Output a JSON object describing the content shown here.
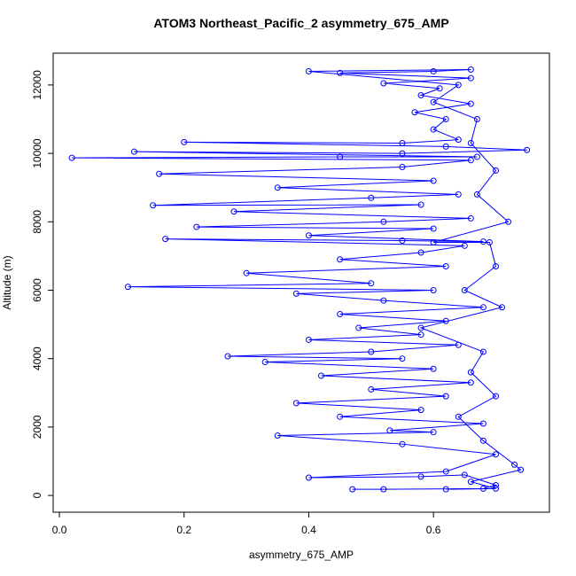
{
  "chart_data": {
    "type": "line",
    "title": "ATOM3 Northeast_Pacific_2 asymmetry_675_AMP",
    "x_label": "asymmetry_675_AMP",
    "y_label": "Altitude (m)",
    "xlim": [
      -0.01,
      0.786
    ],
    "ylim": [
      -490,
      12930
    ],
    "xticks": [
      {
        "value": 0,
        "label": "0.0"
      },
      0.2,
      0.4,
      0.6
    ],
    "yticks": [
      0,
      2000,
      4000,
      6000,
      8000,
      10000,
      12000
    ],
    "series": [
      {
        "name": "asymmetry_675_AMP",
        "color": "#0000ff",
        "x": [
          0.47,
          0.52,
          0.68,
          0.7,
          0.65,
          0.58,
          0.4,
          0.62,
          0.7,
          0.55,
          0.35,
          0.6,
          0.53,
          0.68,
          0.45,
          0.58,
          0.38,
          0.62,
          0.5,
          0.66,
          0.42,
          0.6,
          0.33,
          0.55,
          0.27,
          0.5,
          0.64,
          0.4,
          0.58,
          0.48,
          0.62,
          0.45,
          0.68,
          0.52,
          0.38,
          0.6,
          0.11,
          0.5,
          0.3,
          0.62,
          0.45,
          0.58,
          0.65,
          0.17,
          0.55,
          0.68,
          0.4,
          0.6,
          0.22,
          0.52,
          0.66,
          0.28,
          0.58,
          0.15,
          0.5,
          0.64,
          0.35,
          0.6,
          0.16,
          0.55,
          0.66,
          0.02,
          0.45,
          0.67,
          0.12,
          0.55,
          0.75,
          0.62,
          0.2,
          0.55,
          0.64,
          0.6,
          0.62,
          0.57,
          0.66,
          0.58,
          0.61,
          0.52,
          0.66,
          0.45,
          0.6,
          0.66,
          0.4,
          0.64,
          0.6,
          0.67,
          0.66,
          0.7,
          0.67,
          0.72,
          0.6,
          0.69,
          0.7,
          0.65,
          0.71,
          0.58,
          0.68,
          0.66,
          0.7,
          0.64,
          0.68,
          0.73,
          0.74,
          0.66,
          0.7,
          0.62
        ],
        "values": [
          180,
          180,
          200,
          300,
          600,
          550,
          520,
          700,
          1200,
          1500,
          1750,
          1850,
          1900,
          2100,
          2300,
          2500,
          2700,
          2900,
          3100,
          3300,
          3500,
          3700,
          3900,
          4000,
          4070,
          4200,
          4400,
          4550,
          4700,
          4900,
          5100,
          5300,
          5500,
          5700,
          5900,
          6000,
          6100,
          6200,
          6500,
          6700,
          6900,
          7100,
          7300,
          7500,
          7450,
          7420,
          7600,
          7800,
          7850,
          8000,
          8100,
          8300,
          8500,
          8480,
          8700,
          8800,
          9000,
          9200,
          9400,
          9600,
          9800,
          9870,
          9900,
          9900,
          10050,
          10000,
          10100,
          10200,
          10330,
          10300,
          10400,
          10700,
          11000,
          11200,
          11450,
          11700,
          11900,
          12050,
          12200,
          12350,
          12400,
          12450,
          12400,
          12000,
          11500,
          11000,
          10300,
          9500,
          8800,
          8000,
          7400,
          7400,
          6700,
          6000,
          5500,
          4900,
          4200,
          3600,
          2900,
          2300,
          1600,
          900,
          750,
          400,
          200,
          180
        ]
      }
    ]
  }
}
